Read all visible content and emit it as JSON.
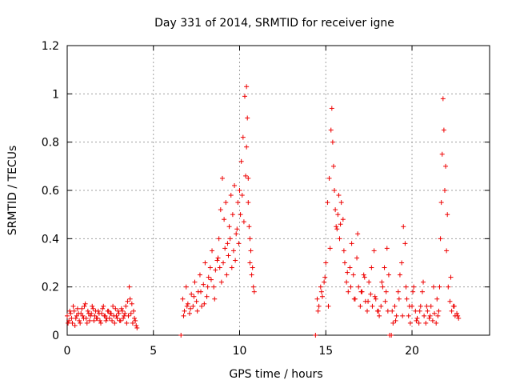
{
  "chart_data": {
    "type": "scatter",
    "title": "Day 331 of 2014, SRMTID for receiver igne",
    "xlabel": "GPS time / hours",
    "ylabel": "SRMTID / TECUs",
    "xlim": [
      0,
      24.5
    ],
    "ylim": [
      0,
      1.2
    ],
    "xticks": [
      0,
      5,
      10,
      15,
      20
    ],
    "xtick_labels": [
      "0",
      "5",
      "10",
      "15",
      "20"
    ],
    "yticks": [
      0,
      0.2,
      0.4,
      0.6,
      0.8,
      1.0,
      1.2
    ],
    "ytick_labels": [
      "0",
      "0.2",
      "0.4",
      "0.6",
      "0.8",
      "1",
      "1.2"
    ],
    "grid": true,
    "marker": "+",
    "series_color": "#ee0000",
    "series": [
      {
        "name": "SRMTID",
        "x": [
          0.0,
          0.1,
          0.2,
          0.3,
          0.4,
          0.5,
          0.6,
          0.7,
          0.8,
          0.9,
          1.0,
          1.1,
          1.2,
          1.3,
          1.4,
          1.5,
          1.6,
          1.7,
          1.8,
          1.9,
          2.0,
          2.1,
          2.2,
          2.3,
          2.4,
          2.5,
          2.6,
          2.7,
          2.8,
          2.9,
          3.0,
          3.1,
          3.2,
          3.3,
          3.4,
          3.5,
          3.6,
          3.65,
          3.7,
          3.8,
          3.9,
          4.0,
          4.05,
          0.05,
          0.15,
          0.25,
          0.35,
          0.45,
          0.55,
          0.65,
          0.75,
          0.85,
          0.95,
          1.05,
          1.15,
          1.25,
          1.35,
          1.45,
          1.55,
          1.65,
          1.75,
          1.85,
          1.95,
          2.05,
          2.15,
          2.25,
          2.35,
          2.45,
          2.55,
          2.65,
          2.75,
          2.85,
          2.95,
          3.05,
          3.15,
          3.25,
          3.35,
          3.45,
          3.55,
          3.75,
          3.85,
          3.95,
          6.6,
          14.4,
          18.7,
          6.7,
          6.8,
          6.9,
          7.0,
          7.1,
          7.2,
          7.3,
          7.4,
          7.5,
          7.6,
          7.7,
          7.8,
          7.9,
          8.0,
          8.1,
          8.2,
          8.3,
          8.4,
          8.5,
          8.6,
          8.7,
          8.8,
          8.9,
          9.0,
          9.1,
          9.2,
          9.3,
          9.4,
          9.5,
          9.6,
          9.7,
          9.8,
          9.9,
          10.0,
          10.1,
          10.2,
          10.3,
          10.4,
          10.45,
          10.5,
          10.55,
          10.6,
          10.7,
          10.8,
          10.85,
          6.75,
          6.95,
          7.15,
          7.35,
          7.55,
          7.75,
          7.95,
          8.15,
          8.35,
          8.55,
          8.75,
          8.85,
          8.95,
          9.05,
          9.15,
          9.25,
          9.35,
          9.45,
          9.55,
          9.65,
          9.75,
          9.85,
          9.95,
          10.05,
          10.15,
          10.25,
          10.35,
          10.4,
          10.5,
          10.6,
          10.65,
          10.75,
          14.5,
          14.6,
          14.7,
          14.8,
          14.9,
          15.0,
          15.1,
          15.2,
          15.3,
          15.35,
          15.4,
          15.45,
          15.5,
          15.6,
          15.7,
          15.8,
          15.9,
          16.0,
          16.1,
          16.2,
          16.3,
          16.4,
          16.5,
          16.6,
          16.7,
          16.8,
          16.9,
          17.0,
          17.1,
          17.2,
          17.3,
          17.4,
          17.5,
          17.6,
          17.7,
          17.8,
          17.9,
          18.0,
          18.1,
          18.2,
          18.3,
          18.4,
          18.5,
          18.6,
          18.8,
          18.9,
          19.0,
          19.1,
          19.2,
          19.3,
          19.4,
          19.5,
          19.6,
          19.7,
          19.8,
          19.9,
          20.0,
          20.1,
          20.2,
          20.3,
          20.4,
          20.5,
          20.6,
          20.7,
          20.8,
          20.9,
          21.0,
          21.1,
          21.2,
          21.3,
          21.4,
          21.5,
          21.6,
          21.65,
          21.7,
          21.75,
          21.8,
          21.85,
          21.9,
          22.0,
          22.1,
          22.2,
          22.3,
          22.4,
          22.5,
          22.6,
          22.7,
          14.55,
          14.75,
          14.95,
          15.15,
          15.25,
          15.55,
          15.65,
          15.75,
          15.85,
          16.05,
          16.25,
          16.45,
          16.65,
          16.85,
          17.05,
          17.25,
          17.45,
          17.65,
          17.85,
          18.05,
          18.25,
          18.45,
          18.55,
          18.65,
          18.85,
          19.05,
          19.25,
          19.45,
          19.65,
          19.85,
          20.05,
          20.25,
          20.45,
          20.65,
          20.85,
          21.05,
          21.25,
          21.45,
          21.55,
          21.95,
          22.05,
          22.25,
          22.45,
          22.65
        ],
        "y": [
          0.08,
          0.06,
          0.09,
          0.05,
          0.1,
          0.07,
          0.11,
          0.06,
          0.09,
          0.08,
          0.12,
          0.07,
          0.1,
          0.06,
          0.09,
          0.11,
          0.08,
          0.07,
          0.1,
          0.06,
          0.09,
          0.12,
          0.08,
          0.07,
          0.1,
          0.09,
          0.06,
          0.08,
          0.11,
          0.07,
          0.09,
          0.06,
          0.1,
          0.08,
          0.12,
          0.14,
          0.2,
          0.15,
          0.09,
          0.05,
          0.07,
          0.04,
          0.03,
          0.05,
          0.1,
          0.07,
          0.12,
          0.04,
          0.08,
          0.09,
          0.05,
          0.11,
          0.07,
          0.13,
          0.05,
          0.09,
          0.08,
          0.12,
          0.06,
          0.1,
          0.07,
          0.09,
          0.05,
          0.11,
          0.08,
          0.06,
          0.1,
          0.07,
          0.09,
          0.12,
          0.05,
          0.08,
          0.1,
          0.06,
          0.11,
          0.07,
          0.09,
          0.05,
          0.08,
          0.13,
          0.1,
          0.06,
          0.0,
          0.0,
          0.0,
          0.15,
          0.1,
          0.2,
          0.13,
          0.09,
          0.17,
          0.12,
          0.22,
          0.14,
          0.18,
          0.25,
          0.12,
          0.21,
          0.3,
          0.16,
          0.24,
          0.28,
          0.35,
          0.2,
          0.27,
          0.31,
          0.4,
          0.52,
          0.65,
          0.48,
          0.55,
          0.38,
          0.45,
          0.58,
          0.5,
          0.62,
          0.42,
          0.55,
          0.6,
          0.72,
          0.82,
          0.99,
          1.03,
          0.9,
          0.65,
          0.45,
          0.3,
          0.25,
          0.2,
          0.18,
          0.08,
          0.12,
          0.11,
          0.16,
          0.1,
          0.18,
          0.13,
          0.2,
          0.23,
          0.15,
          0.32,
          0.28,
          0.22,
          0.3,
          0.36,
          0.25,
          0.33,
          0.4,
          0.28,
          0.35,
          0.31,
          0.44,
          0.38,
          0.5,
          0.58,
          0.47,
          0.66,
          0.78,
          0.55,
          0.4,
          0.35,
          0.28,
          0.15,
          0.12,
          0.2,
          0.16,
          0.22,
          0.3,
          0.55,
          0.65,
          0.85,
          0.94,
          0.8,
          0.7,
          0.6,
          0.45,
          0.5,
          0.4,
          0.55,
          0.48,
          0.3,
          0.22,
          0.18,
          0.28,
          0.38,
          0.25,
          0.15,
          0.32,
          0.2,
          0.12,
          0.18,
          0.25,
          0.14,
          0.1,
          0.22,
          0.17,
          0.12,
          0.35,
          0.15,
          0.1,
          0.08,
          0.12,
          0.2,
          0.28,
          0.18,
          0.1,
          0.0,
          0.05,
          0.12,
          0.08,
          0.18,
          0.25,
          0.3,
          0.45,
          0.38,
          0.15,
          0.08,
          0.05,
          0.12,
          0.2,
          0.1,
          0.07,
          0.05,
          0.12,
          0.18,
          0.08,
          0.05,
          0.1,
          0.07,
          0.12,
          0.06,
          0.09,
          0.05,
          0.08,
          0.2,
          0.4,
          0.55,
          0.75,
          0.98,
          0.85,
          0.6,
          0.35,
          0.2,
          0.14,
          0.1,
          0.12,
          0.08,
          0.09,
          0.07,
          0.1,
          0.18,
          0.24,
          0.12,
          0.36,
          0.52,
          0.44,
          0.58,
          0.46,
          0.35,
          0.26,
          0.2,
          0.15,
          0.42,
          0.18,
          0.24,
          0.14,
          0.28,
          0.16,
          0.1,
          0.22,
          0.14,
          0.36,
          0.25,
          0.1,
          0.06,
          0.15,
          0.08,
          0.2,
          0.12,
          0.18,
          0.06,
          0.1,
          0.22,
          0.12,
          0.08,
          0.2,
          0.15,
          0.1,
          0.7,
          0.5,
          0.24,
          0.12,
          0.08
        ]
      }
    ]
  }
}
